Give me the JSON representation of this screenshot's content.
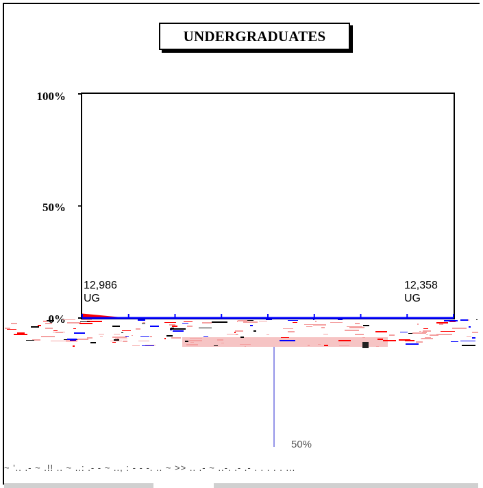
{
  "chart_data": {
    "type": "area",
    "title": "UNDERGRADUATES",
    "y_ticks": [
      "100%",
      "50%",
      "0%"
    ],
    "ylim": [
      0,
      100
    ],
    "x_tick_count": 9,
    "series": [
      {
        "values": [
          2,
          0,
          0,
          0,
          0,
          0,
          0,
          0,
          0
        ],
        "color": "#ff0000"
      },
      {
        "values": [
          0,
          0,
          0,
          0,
          0,
          0,
          0,
          0,
          0
        ],
        "color": "#0000ff"
      }
    ],
    "annotations": [
      {
        "text_line1": "12,986",
        "text_line2": "UG",
        "position": "left"
      },
      {
        "text_line1": "12,358",
        "text_line2": "UG",
        "position": "right"
      }
    ],
    "grid": false
  },
  "lower_label": "50%",
  "bottom_text": "~ '.. .- ~ .!! .. ~ ..: .- - ~ .., : - - -. .. ~ >> .. .- ~ ..-. .- .- . . . . . ...",
  "colors": {
    "red": "#ff0000",
    "blue": "#0000ff",
    "pink": "#f4a0a0"
  }
}
